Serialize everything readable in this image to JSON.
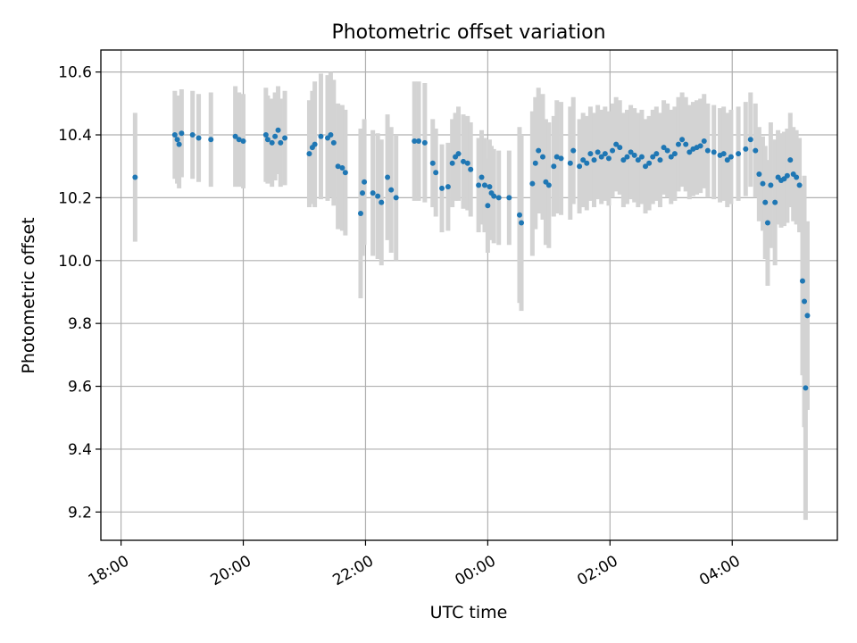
{
  "chart_data": {
    "type": "scatter",
    "title": "Photometric offset variation",
    "xlabel": "UTC time",
    "ylabel": "Photometric offset",
    "x_unit": "hours since 18:00 UTC",
    "xlim": [
      -0.33,
      11.72
    ],
    "ylim": [
      9.11,
      10.67
    ],
    "grid": true,
    "x_ticks": [
      {
        "value": 0,
        "label": "18:00"
      },
      {
        "value": 2,
        "label": "20:00"
      },
      {
        "value": 4,
        "label": "22:00"
      },
      {
        "value": 6,
        "label": "00:00"
      },
      {
        "value": 8,
        "label": "02:00"
      },
      {
        "value": 10,
        "label": "04:00"
      }
    ],
    "y_ticks": [
      {
        "value": 9.2,
        "label": "9.2"
      },
      {
        "value": 9.4,
        "label": "9.4"
      },
      {
        "value": 9.6,
        "label": "9.6"
      },
      {
        "value": 9.8,
        "label": "9.8"
      },
      {
        "value": 10.0,
        "label": "10.0"
      },
      {
        "value": 10.2,
        "label": "10.2"
      },
      {
        "value": 10.4,
        "label": "10.4"
      },
      {
        "value": 10.6,
        "label": "10.6"
      }
    ],
    "colors": {
      "points": "#1f77b4",
      "errorbars": "#d3d3d3",
      "grid": "#b0b0b0"
    },
    "series": [
      {
        "name": "Photometric offset",
        "points": [
          [
            0.23,
            10.265,
            0.205
          ],
          [
            0.88,
            10.4,
            0.14
          ],
          [
            0.92,
            10.385,
            0.14
          ],
          [
            0.95,
            10.37,
            0.14
          ],
          [
            0.99,
            10.405,
            0.14
          ],
          [
            1.17,
            10.4,
            0.14
          ],
          [
            1.27,
            10.39,
            0.14
          ],
          [
            1.47,
            10.385,
            0.15
          ],
          [
            1.87,
            10.395,
            0.16
          ],
          [
            1.93,
            10.385,
            0.15
          ],
          [
            2.0,
            10.38,
            0.15
          ],
          [
            2.37,
            10.4,
            0.15
          ],
          [
            2.4,
            10.385,
            0.14
          ],
          [
            2.47,
            10.375,
            0.14
          ],
          [
            2.52,
            10.395,
            0.14
          ],
          [
            2.57,
            10.415,
            0.14
          ],
          [
            2.61,
            10.375,
            0.14
          ],
          [
            2.68,
            10.39,
            0.15
          ],
          [
            3.08,
            10.34,
            0.17
          ],
          [
            3.13,
            10.36,
            0.18
          ],
          [
            3.17,
            10.37,
            0.2
          ],
          [
            3.27,
            10.395,
            0.2
          ],
          [
            3.38,
            10.39,
            0.2
          ],
          [
            3.43,
            10.4,
            0.2
          ],
          [
            3.48,
            10.375,
            0.2
          ],
          [
            3.55,
            10.3,
            0.2
          ],
          [
            3.62,
            10.295,
            0.2
          ],
          [
            3.67,
            10.28,
            0.2
          ],
          [
            3.92,
            10.15,
            0.27
          ],
          [
            3.95,
            10.215,
            0.2
          ],
          [
            3.98,
            10.25,
            0.2
          ],
          [
            4.12,
            10.215,
            0.2
          ],
          [
            4.2,
            10.205,
            0.2
          ],
          [
            4.26,
            10.185,
            0.2
          ],
          [
            4.36,
            10.265,
            0.2
          ],
          [
            4.42,
            10.225,
            0.2
          ],
          [
            4.5,
            10.2,
            0.2
          ],
          [
            4.8,
            10.38,
            0.19
          ],
          [
            4.87,
            10.38,
            0.19
          ],
          [
            4.97,
            10.375,
            0.19
          ],
          [
            5.1,
            10.31,
            0.14
          ],
          [
            5.15,
            10.28,
            0.14
          ],
          [
            5.25,
            10.23,
            0.14
          ],
          [
            5.35,
            10.235,
            0.14
          ],
          [
            5.42,
            10.31,
            0.14
          ],
          [
            5.47,
            10.33,
            0.14
          ],
          [
            5.52,
            10.34,
            0.15
          ],
          [
            5.6,
            10.315,
            0.15
          ],
          [
            5.67,
            10.31,
            0.15
          ],
          [
            5.72,
            10.29,
            0.15
          ],
          [
            5.85,
            10.24,
            0.15
          ],
          [
            5.9,
            10.265,
            0.15
          ],
          [
            5.95,
            10.24,
            0.15
          ],
          [
            6.0,
            10.175,
            0.15
          ],
          [
            6.03,
            10.235,
            0.15
          ],
          [
            6.06,
            10.215,
            0.15
          ],
          [
            6.1,
            10.205,
            0.15
          ],
          [
            6.18,
            10.2,
            0.15
          ],
          [
            6.35,
            10.2,
            0.15
          ],
          [
            6.52,
            10.145,
            0.28
          ],
          [
            6.55,
            10.12,
            0.28
          ],
          [
            6.73,
            10.245,
            0.23
          ],
          [
            6.78,
            10.31,
            0.21
          ],
          [
            6.83,
            10.35,
            0.2
          ],
          [
            6.9,
            10.33,
            0.2
          ],
          [
            6.95,
            10.25,
            0.2
          ],
          [
            7.0,
            10.24,
            0.2
          ],
          [
            7.08,
            10.3,
            0.16
          ],
          [
            7.13,
            10.33,
            0.18
          ],
          [
            7.2,
            10.325,
            0.18
          ],
          [
            7.35,
            10.31,
            0.18
          ],
          [
            7.4,
            10.35,
            0.17
          ],
          [
            7.5,
            10.3,
            0.15
          ],
          [
            7.56,
            10.32,
            0.15
          ],
          [
            7.62,
            10.31,
            0.15
          ],
          [
            7.68,
            10.34,
            0.15
          ],
          [
            7.74,
            10.32,
            0.15
          ],
          [
            7.8,
            10.345,
            0.15
          ],
          [
            7.86,
            10.33,
            0.15
          ],
          [
            7.92,
            10.34,
            0.15
          ],
          [
            7.98,
            10.325,
            0.15
          ],
          [
            8.04,
            10.35,
            0.15
          ],
          [
            8.1,
            10.37,
            0.15
          ],
          [
            8.16,
            10.36,
            0.15
          ],
          [
            8.22,
            10.32,
            0.15
          ],
          [
            8.28,
            10.33,
            0.15
          ],
          [
            8.34,
            10.345,
            0.15
          ],
          [
            8.4,
            10.335,
            0.15
          ],
          [
            8.46,
            10.32,
            0.15
          ],
          [
            8.52,
            10.33,
            0.15
          ],
          [
            8.58,
            10.3,
            0.15
          ],
          [
            8.64,
            10.31,
            0.15
          ],
          [
            8.7,
            10.33,
            0.15
          ],
          [
            8.76,
            10.34,
            0.15
          ],
          [
            8.82,
            10.32,
            0.15
          ],
          [
            8.88,
            10.36,
            0.15
          ],
          [
            8.94,
            10.35,
            0.15
          ],
          [
            9.0,
            10.33,
            0.15
          ],
          [
            9.06,
            10.34,
            0.15
          ],
          [
            9.12,
            10.37,
            0.15
          ],
          [
            9.18,
            10.385,
            0.15
          ],
          [
            9.24,
            10.37,
            0.15
          ],
          [
            9.3,
            10.345,
            0.15
          ],
          [
            9.36,
            10.355,
            0.15
          ],
          [
            9.42,
            10.36,
            0.15
          ],
          [
            9.48,
            10.365,
            0.15
          ],
          [
            9.54,
            10.38,
            0.15
          ],
          [
            9.6,
            10.35,
            0.15
          ],
          [
            9.7,
            10.345,
            0.15
          ],
          [
            9.8,
            10.335,
            0.15
          ],
          [
            9.86,
            10.34,
            0.15
          ],
          [
            9.92,
            10.32,
            0.15
          ],
          [
            9.98,
            10.33,
            0.15
          ],
          [
            10.1,
            10.34,
            0.15
          ],
          [
            10.22,
            10.355,
            0.15
          ],
          [
            10.3,
            10.385,
            0.15
          ],
          [
            10.38,
            10.35,
            0.15
          ],
          [
            10.44,
            10.275,
            0.15
          ],
          [
            10.5,
            10.245,
            0.15
          ],
          [
            10.54,
            10.185,
            0.18
          ],
          [
            10.58,
            10.12,
            0.2
          ],
          [
            10.63,
            10.24,
            0.2
          ],
          [
            10.7,
            10.185,
            0.2
          ],
          [
            10.75,
            10.265,
            0.15
          ],
          [
            10.8,
            10.255,
            0.15
          ],
          [
            10.85,
            10.26,
            0.15
          ],
          [
            10.9,
            10.27,
            0.15
          ],
          [
            10.95,
            10.32,
            0.15
          ],
          [
            11.0,
            10.275,
            0.15
          ],
          [
            11.05,
            10.265,
            0.15
          ],
          [
            11.1,
            10.24,
            0.15
          ],
          [
            11.15,
            9.935,
            0.3
          ],
          [
            11.18,
            9.87,
            0.4
          ],
          [
            11.2,
            9.595,
            0.42
          ],
          [
            11.23,
            9.825,
            0.3
          ]
        ]
      }
    ]
  }
}
